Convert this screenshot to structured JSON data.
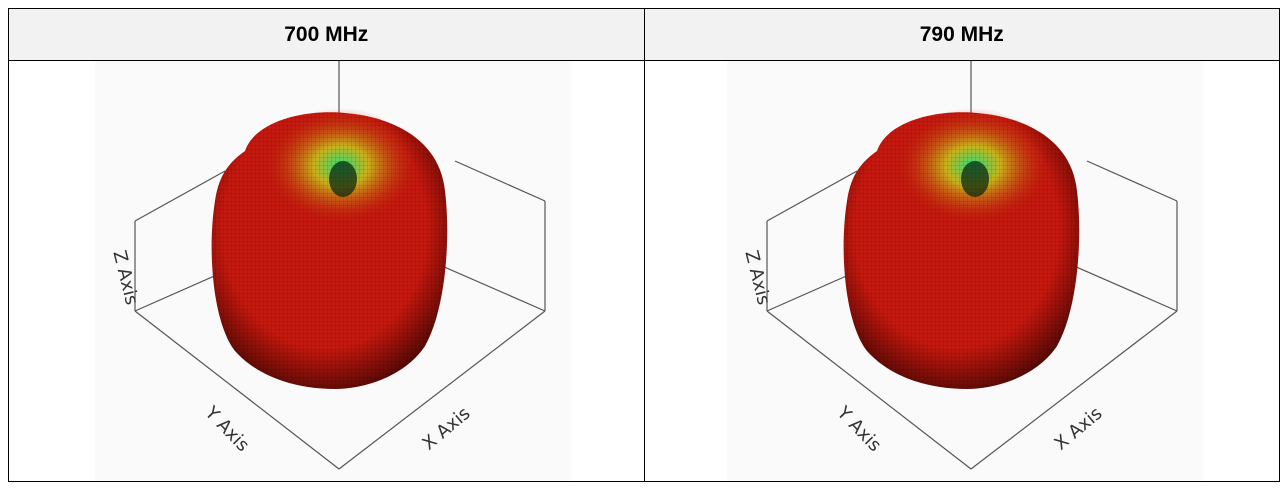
{
  "columns": [
    {
      "header": "700 MHz",
      "axis_labels": {
        "x": "X Axis",
        "y": "Y Axis",
        "z": "Z Axis"
      }
    },
    {
      "header": "790 MHz",
      "axis_labels": {
        "x": "X Axis",
        "y": "Y Axis",
        "z": "Z Axis"
      }
    }
  ],
  "colors": {
    "lobe_red": "#c21a10",
    "lobe_dark_red": "#4a0805",
    "lobe_top_yellow": "#c9b21c",
    "lobe_top_green": "#2fe07a",
    "axis_lines": "#555555",
    "plot_background": "#fafafa"
  }
}
